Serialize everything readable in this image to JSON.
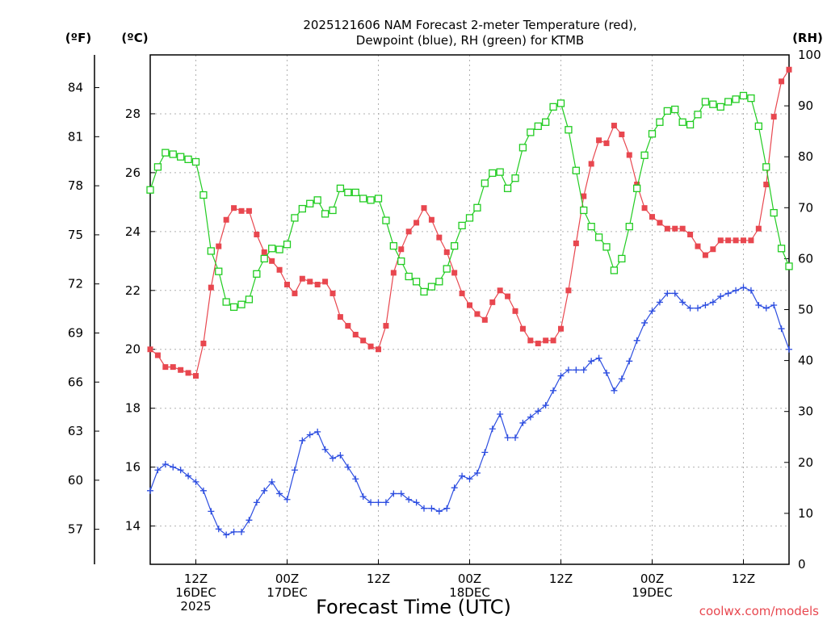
{
  "chart_data": {
    "type": "line",
    "title": [
      "2025121606 NAM Forecast 2-meter Temperature (red),",
      "Dewpoint (blue), RH (green) for KTMB"
    ],
    "xlabel": "Forecast Time (UTC)",
    "credit": "coolwx.com/models",
    "units": {
      "fahrenheit": "(ºF)",
      "celsius": "(ºC)",
      "rh": "(RH)"
    },
    "x_unit": "forecast hour from 2025-12-16 06Z",
    "xlim": [
      0,
      84
    ],
    "x_ticks": [
      {
        "x": 6,
        "lines": [
          "12Z",
          "16DEC",
          "2025"
        ]
      },
      {
        "x": 18,
        "lines": [
          "00Z",
          "17DEC"
        ]
      },
      {
        "x": 30,
        "lines": [
          "12Z"
        ]
      },
      {
        "x": 42,
        "lines": [
          "00Z",
          "18DEC"
        ]
      },
      {
        "x": 54,
        "lines": [
          "12Z"
        ]
      },
      {
        "x": 66,
        "lines": [
          "00Z",
          "19DEC"
        ]
      },
      {
        "x": 78,
        "lines": [
          "12Z"
        ]
      }
    ],
    "ylim_c": [
      12.7,
      30.0
    ],
    "y_ticks_c": [
      14,
      16,
      18,
      20,
      22,
      24,
      26,
      28
    ],
    "y_ticks_f": [
      57,
      60,
      63,
      66,
      69,
      72,
      75,
      78,
      81,
      84
    ],
    "ylim_rh": [
      0,
      100
    ],
    "y_ticks_rh": [
      0,
      10,
      20,
      30,
      40,
      50,
      60,
      70,
      80,
      90,
      100
    ],
    "grid": true,
    "colors": {
      "temperature": "#e8474f",
      "dewpoint": "#2c4de0",
      "rh": "#22cc22"
    },
    "series": [
      {
        "name": "Temperature",
        "axis": "celsius",
        "values": [
          [
            0,
            20.0
          ],
          [
            1,
            19.8
          ],
          [
            2,
            19.4
          ],
          [
            3,
            19.4
          ],
          [
            4,
            19.3
          ],
          [
            5,
            19.2
          ],
          [
            6,
            19.1
          ],
          [
            7,
            20.2
          ],
          [
            8,
            22.1
          ],
          [
            9,
            23.5
          ],
          [
            10,
            24.4
          ],
          [
            11,
            24.8
          ],
          [
            12,
            24.7
          ],
          [
            13,
            24.7
          ],
          [
            14,
            23.9
          ],
          [
            15,
            23.3
          ],
          [
            16,
            23.0
          ],
          [
            17,
            22.7
          ],
          [
            18,
            22.2
          ],
          [
            19,
            21.9
          ],
          [
            20,
            22.4
          ],
          [
            21,
            22.3
          ],
          [
            22,
            22.2
          ],
          [
            23,
            22.3
          ],
          [
            24,
            21.9
          ],
          [
            25,
            21.1
          ],
          [
            26,
            20.8
          ],
          [
            27,
            20.5
          ],
          [
            28,
            20.3
          ],
          [
            29,
            20.1
          ],
          [
            30,
            20.0
          ],
          [
            31,
            20.8
          ],
          [
            32,
            22.6
          ],
          [
            33,
            23.4
          ],
          [
            34,
            24.0
          ],
          [
            35,
            24.3
          ],
          [
            36,
            24.8
          ],
          [
            37,
            24.4
          ],
          [
            38,
            23.8
          ],
          [
            39,
            23.3
          ],
          [
            40,
            22.6
          ],
          [
            41,
            21.9
          ],
          [
            42,
            21.5
          ],
          [
            43,
            21.2
          ],
          [
            44,
            21.0
          ],
          [
            45,
            21.6
          ],
          [
            46,
            22.0
          ],
          [
            47,
            21.8
          ],
          [
            48,
            21.3
          ],
          [
            49,
            20.7
          ],
          [
            50,
            20.3
          ],
          [
            51,
            20.2
          ],
          [
            52,
            20.3
          ],
          [
            53,
            20.3
          ],
          [
            54,
            20.7
          ],
          [
            55,
            22.0
          ],
          [
            56,
            23.6
          ],
          [
            57,
            25.2
          ],
          [
            58,
            26.3
          ],
          [
            59,
            27.1
          ],
          [
            60,
            27.0
          ],
          [
            61,
            27.6
          ],
          [
            62,
            27.3
          ],
          [
            63,
            26.6
          ],
          [
            64,
            25.6
          ],
          [
            65,
            24.8
          ],
          [
            66,
            24.5
          ],
          [
            67,
            24.3
          ],
          [
            68,
            24.1
          ],
          [
            69,
            24.1
          ],
          [
            70,
            24.1
          ],
          [
            71,
            23.9
          ],
          [
            72,
            23.5
          ],
          [
            73,
            23.2
          ],
          [
            74,
            23.4
          ],
          [
            75,
            23.7
          ],
          [
            76,
            23.7
          ],
          [
            77,
            23.7
          ],
          [
            78,
            23.7
          ],
          [
            79,
            23.7
          ],
          [
            80,
            24.1
          ],
          [
            81,
            25.6
          ],
          [
            82,
            27.9
          ],
          [
            83,
            29.1
          ],
          [
            84,
            29.5
          ]
        ]
      },
      {
        "name": "Dewpoint",
        "axis": "celsius",
        "values": [
          [
            0,
            15.2
          ],
          [
            1,
            15.9
          ],
          [
            2,
            16.1
          ],
          [
            3,
            16.0
          ],
          [
            4,
            15.9
          ],
          [
            5,
            15.7
          ],
          [
            6,
            15.5
          ],
          [
            7,
            15.2
          ],
          [
            8,
            14.5
          ],
          [
            9,
            13.9
          ],
          [
            10,
            13.7
          ],
          [
            11,
            13.8
          ],
          [
            12,
            13.8
          ],
          [
            13,
            14.2
          ],
          [
            14,
            14.8
          ],
          [
            15,
            15.2
          ],
          [
            16,
            15.5
          ],
          [
            17,
            15.1
          ],
          [
            18,
            14.9
          ],
          [
            19,
            15.9
          ],
          [
            20,
            16.9
          ],
          [
            21,
            17.1
          ],
          [
            22,
            17.2
          ],
          [
            23,
            16.6
          ],
          [
            24,
            16.3
          ],
          [
            25,
            16.4
          ],
          [
            26,
            16.0
          ],
          [
            27,
            15.6
          ],
          [
            28,
            15.0
          ],
          [
            29,
            14.8
          ],
          [
            30,
            14.8
          ],
          [
            31,
            14.8
          ],
          [
            32,
            15.1
          ],
          [
            33,
            15.1
          ],
          [
            34,
            14.9
          ],
          [
            35,
            14.8
          ],
          [
            36,
            14.6
          ],
          [
            37,
            14.6
          ],
          [
            38,
            14.5
          ],
          [
            39,
            14.6
          ],
          [
            40,
            15.3
          ],
          [
            41,
            15.7
          ],
          [
            42,
            15.6
          ],
          [
            43,
            15.8
          ],
          [
            44,
            16.5
          ],
          [
            45,
            17.3
          ],
          [
            46,
            17.8
          ],
          [
            47,
            17.0
          ],
          [
            48,
            17.0
          ],
          [
            49,
            17.5
          ],
          [
            50,
            17.7
          ],
          [
            51,
            17.9
          ],
          [
            52,
            18.1
          ],
          [
            53,
            18.6
          ],
          [
            54,
            19.1
          ],
          [
            55,
            19.3
          ],
          [
            56,
            19.3
          ],
          [
            57,
            19.3
          ],
          [
            58,
            19.6
          ],
          [
            59,
            19.7
          ],
          [
            60,
            19.2
          ],
          [
            61,
            18.6
          ],
          [
            62,
            19.0
          ],
          [
            63,
            19.6
          ],
          [
            64,
            20.3
          ],
          [
            65,
            20.9
          ],
          [
            66,
            21.3
          ],
          [
            67,
            21.6
          ],
          [
            68,
            21.9
          ],
          [
            69,
            21.9
          ],
          [
            70,
            21.6
          ],
          [
            71,
            21.4
          ],
          [
            72,
            21.4
          ],
          [
            73,
            21.5
          ],
          [
            74,
            21.6
          ],
          [
            75,
            21.8
          ],
          [
            76,
            21.9
          ],
          [
            77,
            22.0
          ],
          [
            78,
            22.1
          ],
          [
            79,
            22.0
          ],
          [
            80,
            21.5
          ],
          [
            81,
            21.4
          ],
          [
            82,
            21.5
          ],
          [
            83,
            20.7
          ],
          [
            84,
            20.0
          ]
        ]
      },
      {
        "name": "RH",
        "axis": "rh",
        "values": [
          [
            0,
            73.5
          ],
          [
            1,
            78.0
          ],
          [
            2,
            80.8
          ],
          [
            3,
            80.5
          ],
          [
            4,
            80.0
          ],
          [
            5,
            79.5
          ],
          [
            6,
            79.0
          ],
          [
            7,
            72.5
          ],
          [
            8,
            61.5
          ],
          [
            9,
            57.5
          ],
          [
            10,
            51.5
          ],
          [
            11,
            50.5
          ],
          [
            12,
            51.0
          ],
          [
            13,
            52.0
          ],
          [
            14,
            57.0
          ],
          [
            15,
            60.0
          ],
          [
            16,
            62.0
          ],
          [
            17,
            61.8
          ],
          [
            18,
            62.8
          ],
          [
            19,
            68.0
          ],
          [
            20,
            69.8
          ],
          [
            21,
            70.8
          ],
          [
            22,
            71.5
          ],
          [
            23,
            68.8
          ],
          [
            24,
            69.5
          ],
          [
            25,
            73.8
          ],
          [
            26,
            73.0
          ],
          [
            27,
            73.0
          ],
          [
            28,
            71.8
          ],
          [
            29,
            71.5
          ],
          [
            30,
            71.8
          ],
          [
            31,
            67.5
          ],
          [
            32,
            62.5
          ],
          [
            33,
            59.5
          ],
          [
            34,
            56.5
          ],
          [
            35,
            55.5
          ],
          [
            36,
            53.5
          ],
          [
            37,
            54.5
          ],
          [
            38,
            55.5
          ],
          [
            39,
            58.0
          ],
          [
            40,
            62.5
          ],
          [
            41,
            66.5
          ],
          [
            42,
            68.0
          ],
          [
            43,
            70.0
          ],
          [
            44,
            74.8
          ],
          [
            45,
            76.8
          ],
          [
            46,
            77.0
          ],
          [
            47,
            73.8
          ],
          [
            48,
            75.8
          ],
          [
            49,
            81.8
          ],
          [
            50,
            84.8
          ],
          [
            51,
            86.0
          ],
          [
            52,
            86.8
          ],
          [
            53,
            89.8
          ],
          [
            54,
            90.5
          ],
          [
            55,
            85.3
          ],
          [
            56,
            77.3
          ],
          [
            57,
            69.5
          ],
          [
            58,
            66.3
          ],
          [
            59,
            64.2
          ],
          [
            60,
            62.3
          ],
          [
            61,
            57.7
          ],
          [
            62,
            60.0
          ],
          [
            63,
            66.3
          ],
          [
            64,
            73.8
          ],
          [
            65,
            80.3
          ],
          [
            66,
            84.5
          ],
          [
            67,
            86.8
          ],
          [
            68,
            89.0
          ],
          [
            69,
            89.3
          ],
          [
            70,
            86.8
          ],
          [
            71,
            86.3
          ],
          [
            72,
            88.3
          ],
          [
            73,
            90.8
          ],
          [
            74,
            90.3
          ],
          [
            75,
            89.8
          ],
          [
            76,
            90.8
          ],
          [
            77,
            91.3
          ],
          [
            78,
            92.0
          ],
          [
            79,
            91.5
          ],
          [
            80,
            86.0
          ],
          [
            81,
            78.0
          ],
          [
            82,
            69.0
          ],
          [
            83,
            62.0
          ],
          [
            84,
            58.5
          ]
        ]
      }
    ]
  }
}
